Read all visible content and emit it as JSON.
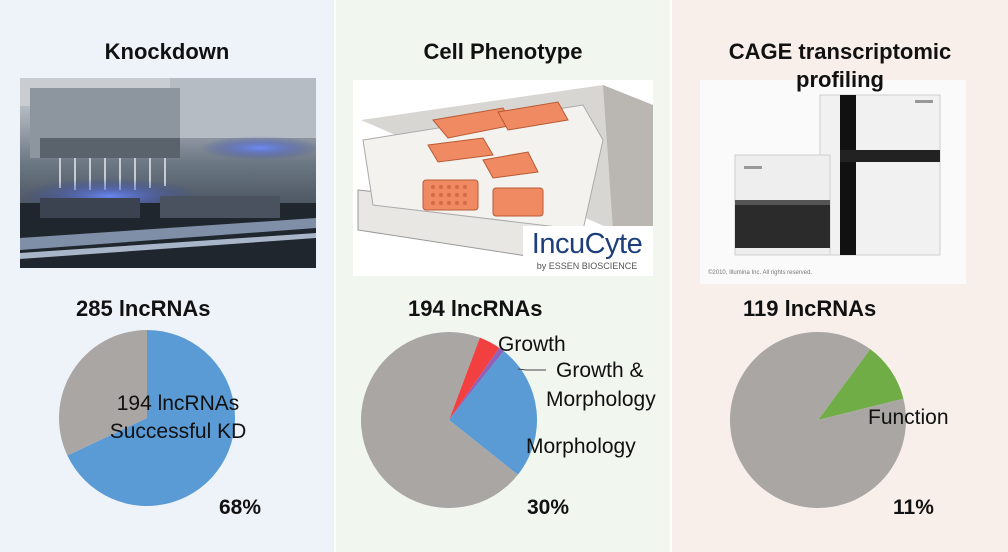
{
  "panels": [
    {
      "title": "Knockdown",
      "count_label": "285 lncRNAs",
      "percent_label": "68%",
      "center_label_lines": [
        "194 lncRNAs",
        "Successful KD"
      ]
    },
    {
      "title": "Cell Phenotype",
      "count_label": "194 lncRNAs",
      "percent_label": "30%",
      "photo_brand": "IncuCyte",
      "photo_brand_sub": "by ESSEN BIOSCIENCE"
    },
    {
      "title_lines": [
        "CAGE transcriptomic",
        "profiling"
      ],
      "count_label": "119 lncRNAs",
      "percent_label": "11%",
      "photo_caption": "©2010, Illumina Inc. All rights reserved."
    }
  ],
  "chart_data": [
    {
      "type": "pie",
      "title": "Knockdown",
      "slices": [
        {
          "label": "194 lncRNAs Successful KD",
          "value": 68,
          "color": "#5b9bd5"
        },
        {
          "label": "",
          "value": 32,
          "color": "#a9a6a3"
        }
      ]
    },
    {
      "type": "pie",
      "title": "Cell Phenotype",
      "slices": [
        {
          "label": "Growth",
          "value": 4,
          "color": "#f24040"
        },
        {
          "label": "Growth & Morphology",
          "value": 1,
          "color": "#8e62b8"
        },
        {
          "label": "Morphology",
          "value": 25,
          "color": "#5b9bd5"
        },
        {
          "label": "",
          "value": 70,
          "color": "#a9a6a3"
        }
      ]
    },
    {
      "type": "pie",
      "title": "CAGE transcriptomic profiling",
      "slices": [
        {
          "label": "Function",
          "value": 11,
          "color": "#70ad47"
        },
        {
          "label": "",
          "value": 89,
          "color": "#a9a6a3"
        }
      ]
    }
  ]
}
